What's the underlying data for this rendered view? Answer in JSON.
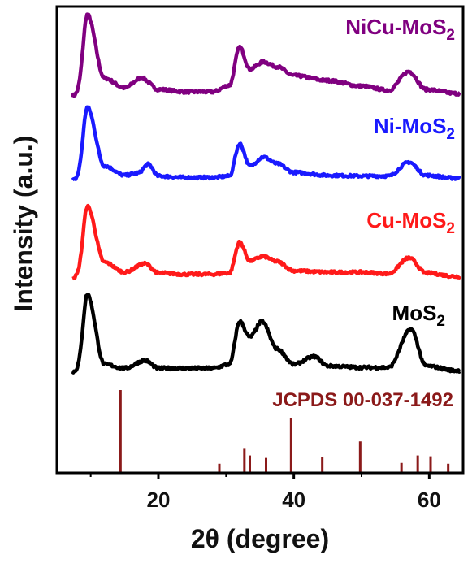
{
  "chart_data": {
    "type": "line",
    "xlabel": "2θ (degree)",
    "ylabel": "Intensity (a.u.)",
    "xlim": [
      5,
      65
    ],
    "x_ticks": [
      "20",
      "40",
      "60"
    ],
    "x_tick_values": [
      20,
      40,
      60
    ],
    "grid": false,
    "series": [
      {
        "name": "NiCu-MoS2",
        "name_main": "NiCu-MoS",
        "name_sub": "2",
        "color": "#800080",
        "x": [
          9.5,
          12,
          15,
          17.5,
          20,
          24,
          28,
          30.5,
          32,
          33.5,
          35.5,
          37.5,
          40,
          45,
          50,
          54,
          57,
          59.5,
          64
        ],
        "y": [
          1.0,
          0.22,
          0.1,
          0.22,
          0.08,
          0.05,
          0.05,
          0.13,
          0.6,
          0.33,
          0.42,
          0.36,
          0.25,
          0.19,
          0.12,
          0.07,
          0.3,
          0.08,
          0.03
        ]
      },
      {
        "name": "Ni-MoS2",
        "name_main": "Ni-MoS",
        "name_sub": "2",
        "color": "#1a1aff",
        "x": [
          9.5,
          12,
          15,
          17,
          18.5,
          20,
          24,
          28,
          30.5,
          32,
          33.5,
          35.5,
          37.5,
          40,
          45,
          50,
          54,
          57,
          59.5,
          64
        ],
        "y": [
          1.0,
          0.2,
          0.07,
          0.1,
          0.22,
          0.06,
          0.04,
          0.04,
          0.06,
          0.5,
          0.2,
          0.32,
          0.23,
          0.11,
          0.07,
          0.06,
          0.06,
          0.25,
          0.07,
          0.03
        ]
      },
      {
        "name": "Cu-MoS2",
        "name_main": "Cu-MoS",
        "name_sub": "2",
        "color": "#ff1a1a",
        "x": [
          9.5,
          12,
          15,
          18,
          20,
          24,
          28,
          30.5,
          32,
          33.5,
          35.5,
          37.5,
          40,
          45,
          50,
          54,
          57,
          59.5,
          64
        ],
        "y": [
          1.0,
          0.22,
          0.08,
          0.2,
          0.07,
          0.05,
          0.05,
          0.07,
          0.5,
          0.24,
          0.3,
          0.23,
          0.1,
          0.08,
          0.08,
          0.06,
          0.28,
          0.07,
          0.02
        ]
      },
      {
        "name": "MoS2",
        "name_main": "MoS",
        "name_sub": "2",
        "color": "#000000",
        "x": [
          9.5,
          12,
          15,
          18,
          20,
          24,
          28,
          30.5,
          32,
          33.5,
          35.3,
          37.5,
          40,
          43,
          45,
          50,
          54,
          57.3,
          59.5,
          64
        ],
        "y": [
          1.0,
          0.1,
          0.05,
          0.15,
          0.05,
          0.05,
          0.05,
          0.1,
          0.65,
          0.45,
          0.65,
          0.3,
          0.1,
          0.2,
          0.08,
          0.06,
          0.06,
          0.55,
          0.08,
          0.02
        ]
      }
    ],
    "reference": {
      "name": "JCPDS 00-037-1492",
      "color": "#8b1a1a",
      "x": [
        14.4,
        29.0,
        32.7,
        33.5,
        35.9,
        39.6,
        44.2,
        49.8,
        55.9,
        58.3,
        60.2,
        62.8
      ],
      "y": [
        100,
        11,
        30,
        21,
        18,
        66,
        19,
        38,
        12,
        21,
        20,
        11
      ]
    }
  }
}
